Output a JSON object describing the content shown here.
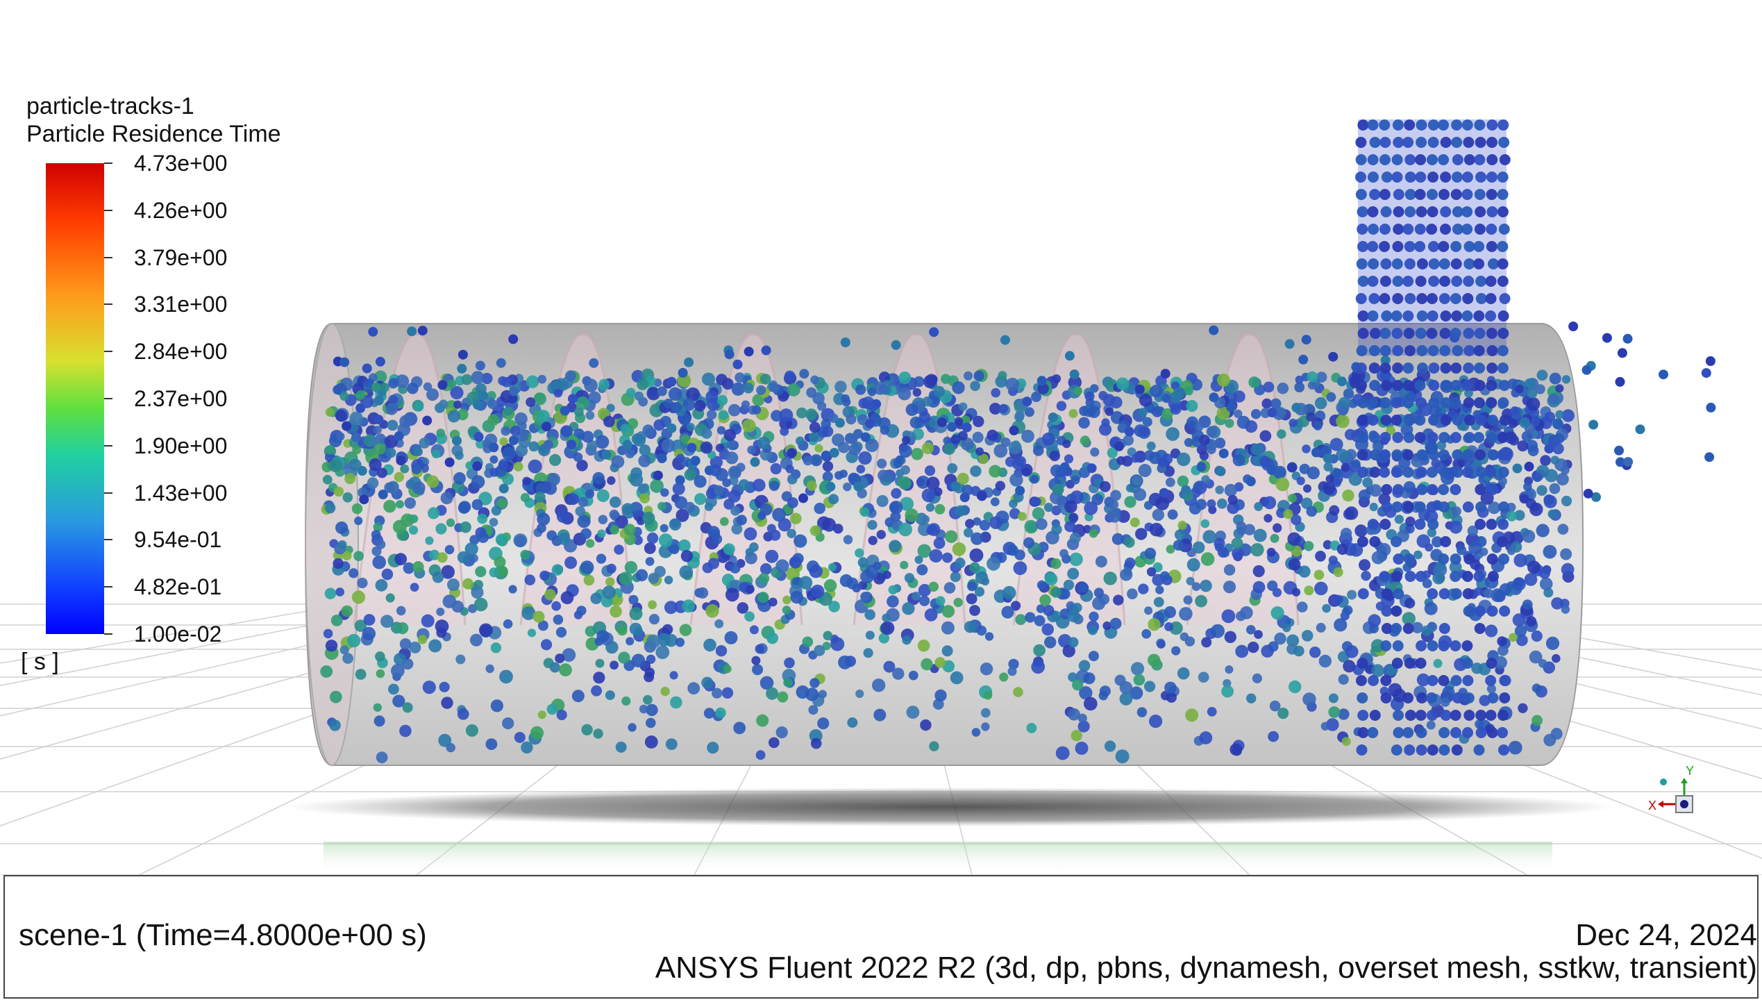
{
  "legend": {
    "track_name": "particle-tracks-1",
    "variable": "Particle Residence Time",
    "units": "[ s ]",
    "ticks": [
      "4.73e+00",
      "4.26e+00",
      "3.79e+00",
      "3.31e+00",
      "2.84e+00",
      "2.37e+00",
      "1.90e+00",
      "1.43e+00",
      "9.54e-01",
      "4.82e-01",
      "1.00e-02"
    ]
  },
  "viewport": {
    "axis_icon": "xyz-triad-icon",
    "axis_x_label": "X",
    "axis_y_label": "Y"
  },
  "footer": {
    "scene": "scene-1  (Time=4.8000e+00 s)",
    "date": "Dec 24, 2024",
    "solver": "ANSYS Fluent 2022 R2 (3d, dp, pbns, dynamesh, overset mesh, sstkw, transient)"
  }
}
